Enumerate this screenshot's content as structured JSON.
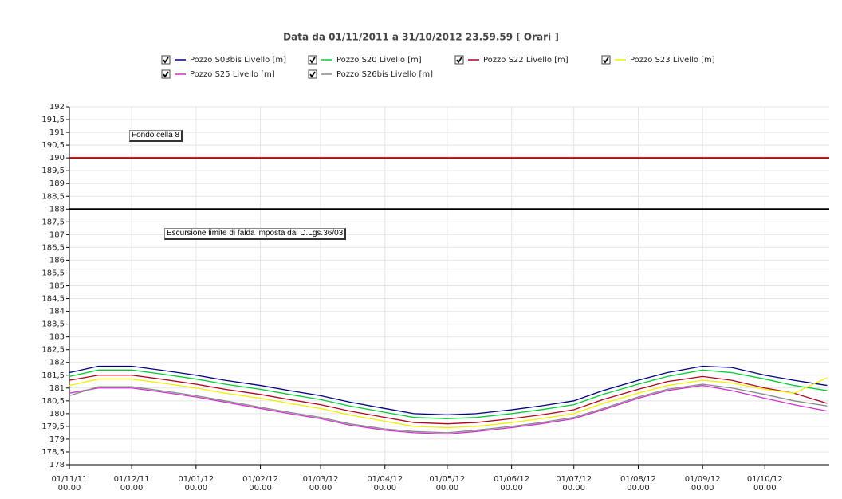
{
  "chart_data": {
    "type": "line",
    "title": "Data da 01/11/2011 a 31/10/2012 23.59.59  [ Orari ]",
    "x": [
      "2011-11-01",
      "2011-11-15",
      "2011-12-01",
      "2011-12-15",
      "2012-01-01",
      "2012-01-15",
      "2012-02-01",
      "2012-02-15",
      "2012-03-01",
      "2012-03-15",
      "2012-04-01",
      "2012-04-15",
      "2012-05-01",
      "2012-05-15",
      "2012-06-01",
      "2012-06-15",
      "2012-07-01",
      "2012-07-15",
      "2012-08-01",
      "2012-08-15",
      "2012-09-01",
      "2012-09-15",
      "2012-10-01",
      "2012-10-15",
      "2012-10-31"
    ],
    "series": [
      {
        "name": "Pozzo S03bis Livello [m]",
        "color": "#000080",
        "values": [
          181.6,
          181.85,
          181.85,
          181.7,
          181.5,
          181.3,
          181.1,
          180.9,
          180.7,
          180.45,
          180.2,
          180.0,
          179.95,
          180.0,
          180.15,
          180.3,
          180.5,
          180.9,
          181.3,
          181.6,
          181.85,
          181.8,
          181.5,
          181.3,
          181.1
        ]
      },
      {
        "name": "Pozzo S20 Livello [m]",
        "color": "#00cc33",
        "values": [
          181.45,
          181.7,
          181.7,
          181.55,
          181.35,
          181.15,
          180.95,
          180.75,
          180.55,
          180.3,
          180.05,
          179.85,
          179.8,
          179.85,
          180.0,
          180.15,
          180.35,
          180.75,
          181.15,
          181.45,
          181.7,
          181.6,
          181.35,
          181.1,
          180.9
        ]
      },
      {
        "name": "Pozzo S22 Livello [m]",
        "color": "#b00020",
        "values": [
          181.3,
          181.5,
          181.5,
          181.35,
          181.15,
          180.95,
          180.75,
          180.55,
          180.35,
          180.1,
          179.85,
          179.65,
          179.6,
          179.65,
          179.8,
          179.95,
          180.15,
          180.55,
          180.95,
          181.25,
          181.45,
          181.3,
          181.0,
          180.8,
          180.4
        ]
      },
      {
        "name": "Pozzo S23 Livello [m]",
        "color": "#f0f000",
        "values": [
          181.1,
          181.35,
          181.35,
          181.2,
          181.0,
          180.8,
          180.6,
          180.4,
          180.2,
          179.95,
          179.7,
          179.5,
          179.45,
          179.5,
          179.65,
          179.8,
          180.0,
          180.4,
          180.8,
          181.1,
          181.3,
          181.2,
          180.95,
          180.8,
          181.4
        ]
      },
      {
        "name": "Pozzo S25 Livello [m]",
        "color": "#cc33cc",
        "values": [
          180.8,
          181.0,
          181.0,
          180.85,
          180.65,
          180.45,
          180.2,
          180.0,
          179.8,
          179.55,
          179.35,
          179.25,
          179.2,
          179.3,
          179.45,
          179.6,
          179.8,
          180.15,
          180.6,
          180.9,
          181.1,
          180.9,
          180.6,
          180.35,
          180.1
        ]
      },
      {
        "name": "Pozzo S26bis Livello [m]",
        "color": "#888888",
        "values": [
          180.7,
          181.05,
          181.05,
          180.9,
          180.7,
          180.5,
          180.25,
          180.05,
          179.85,
          179.6,
          179.4,
          179.3,
          179.25,
          179.35,
          179.5,
          179.65,
          179.85,
          180.2,
          180.65,
          180.95,
          181.15,
          181.0,
          180.75,
          180.5,
          180.3
        ]
      }
    ],
    "reference_lines": [
      {
        "value": 190,
        "color": "#cc0000",
        "label": "Fondo cella 8"
      },
      {
        "value": 188,
        "color": "#000000",
        "label": "Escursione limite di falda imposta dal D.Lgs.36/03"
      }
    ],
    "xlim": [
      "2011-11-01",
      "2012-11-01"
    ],
    "xticks": [
      {
        "value": "2011-11-01",
        "label": "01/11/11\n00.00"
      },
      {
        "value": "2011-12-01",
        "label": "01/12/11\n00.00"
      },
      {
        "value": "2012-01-01",
        "label": "01/01/12\n00.00"
      },
      {
        "value": "2012-02-01",
        "label": "01/02/12\n00.00"
      },
      {
        "value": "2012-03-01",
        "label": "01/03/12\n00.00"
      },
      {
        "value": "2012-04-01",
        "label": "01/04/12\n00.00"
      },
      {
        "value": "2012-05-01",
        "label": "01/05/12\n00.00"
      },
      {
        "value": "2012-06-01",
        "label": "01/06/12\n00.00"
      },
      {
        "value": "2012-07-01",
        "label": "01/07/12\n00.00"
      },
      {
        "value": "2012-08-01",
        "label": "01/08/12\n00.00"
      },
      {
        "value": "2012-09-01",
        "label": "01/09/12\n00.00"
      },
      {
        "value": "2012-10-01",
        "label": "01/10/12\n00.00"
      }
    ],
    "ylim": [
      178,
      192
    ],
    "yticks": [
      178,
      {
        "value": 178.5,
        "label": "178,5"
      },
      179,
      {
        "value": 179.5,
        "label": "179,5"
      },
      180,
      {
        "value": 180.5,
        "label": "180,5"
      },
      181,
      {
        "value": 181.5,
        "label": "181,5"
      },
      182,
      {
        "value": 182.5,
        "label": "182,5"
      },
      183,
      {
        "value": 183.5,
        "label": "183,5"
      },
      184,
      {
        "value": 184.5,
        "label": "184,5"
      },
      185,
      {
        "value": 185.5,
        "label": "185,5"
      },
      186,
      {
        "value": 186.5,
        "label": "186,5"
      },
      187,
      {
        "value": 187.5,
        "label": "187,5"
      },
      188,
      {
        "value": 188.5,
        "label": "188,5"
      },
      189,
      {
        "value": 189.5,
        "label": "189,5"
      },
      190,
      {
        "value": 190.5,
        "label": "190,5"
      },
      191,
      {
        "value": 191.5,
        "label": "191,5"
      },
      192
    ],
    "grid": true
  }
}
